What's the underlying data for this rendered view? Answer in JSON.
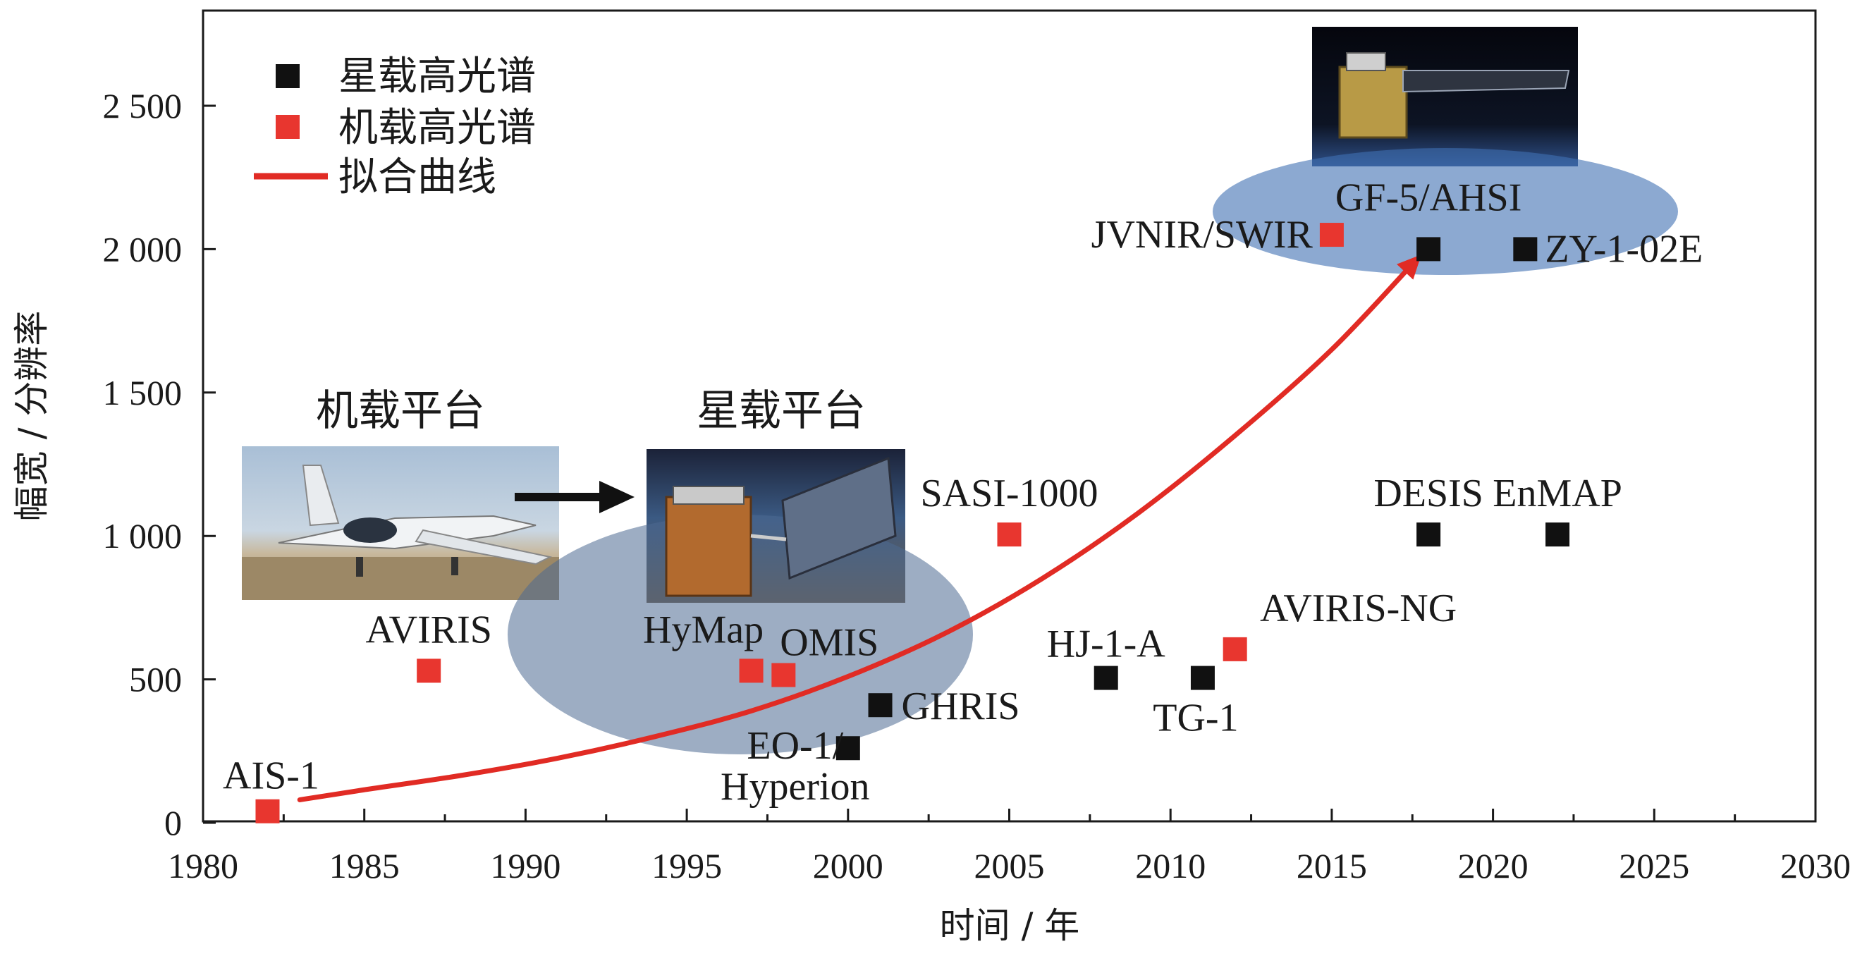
{
  "chart_data": {
    "type": "scatter",
    "xlabel": "时间 / 年",
    "ylabel": "幅宽 / 分辨率",
    "xlim": [
      1980,
      2030
    ],
    "ylim": [
      0,
      2800
    ],
    "x_ticks": [
      "1980",
      "1985",
      "1990",
      "1995",
      "2000",
      "2005",
      "2010",
      "2015",
      "2020",
      "2025",
      "2030"
    ],
    "y_ticks": [
      {
        "value": 0,
        "label": "0"
      },
      {
        "value": 500,
        "label": "500"
      },
      {
        "value": 1000,
        "label": "1 000"
      },
      {
        "value": 1500,
        "label": "1 500"
      },
      {
        "value": 2000,
        "label": "2 000"
      },
      {
        "value": 2500,
        "label": "2 500"
      }
    ],
    "legend": {
      "placement": "top-left",
      "entries": [
        {
          "label": "星载高光谱",
          "kind": "square",
          "color": "#111111"
        },
        {
          "label": "机载高光谱",
          "kind": "square",
          "color": "#e8362f"
        },
        {
          "label": "拟合曲线",
          "kind": "line",
          "color": "#e12b24"
        }
      ]
    },
    "series": [
      {
        "name": "星载高光谱",
        "color": "#111111",
        "points": [
          {
            "label": "EO-1/\nHyperion",
            "x": 2000,
            "y": 260
          },
          {
            "label": "GHRIS",
            "x": 2001,
            "y": 410
          },
          {
            "label": "HJ-1-A",
            "x": 2008,
            "y": 505
          },
          {
            "label": "TG-1",
            "x": 2011,
            "y": 505
          },
          {
            "label": "DESIS",
            "x": 2018,
            "y": 1005
          },
          {
            "label": "EnMAP",
            "x": 2022,
            "y": 1005
          },
          {
            "label": "GF-5/AHSI",
            "x": 2018,
            "y": 2000
          },
          {
            "label": "ZY-1-02E",
            "x": 2021,
            "y": 2000
          }
        ]
      },
      {
        "name": "机载高光谱",
        "color": "#e8362f",
        "points": [
          {
            "label": "AIS-1",
            "x": 1982,
            "y": 40
          },
          {
            "label": "AVIRIS",
            "x": 1987,
            "y": 530
          },
          {
            "label": "HyMap",
            "x": 1997,
            "y": 530
          },
          {
            "label": "OMIS",
            "x": 1998,
            "y": 515
          },
          {
            "label": "SASI-1000",
            "x": 2005,
            "y": 1005
          },
          {
            "label": "AVIRIS-NG",
            "x": 2012,
            "y": 605
          },
          {
            "label": "JVNIR/SWIR",
            "x": 2015,
            "y": 2050
          }
        ]
      }
    ],
    "fit_curve": {
      "name": "拟合曲线",
      "color": "#e12b24",
      "points": [
        {
          "x": 1983,
          "y": 80
        },
        {
          "x": 1985,
          "y": 115
        },
        {
          "x": 1988,
          "y": 165
        },
        {
          "x": 1991,
          "y": 225
        },
        {
          "x": 1994,
          "y": 300
        },
        {
          "x": 1997,
          "y": 390
        },
        {
          "x": 2000,
          "y": 510
        },
        {
          "x": 2003,
          "y": 660
        },
        {
          "x": 2006,
          "y": 850
        },
        {
          "x": 2009,
          "y": 1080
        },
        {
          "x": 2012,
          "y": 1350
        },
        {
          "x": 2015,
          "y": 1650
        },
        {
          "x": 2017.6,
          "y": 1960
        }
      ]
    },
    "annotations": [
      {
        "text": "机载平台",
        "kind": "caption"
      },
      {
        "text": "星载平台",
        "kind": "caption"
      }
    ]
  }
}
